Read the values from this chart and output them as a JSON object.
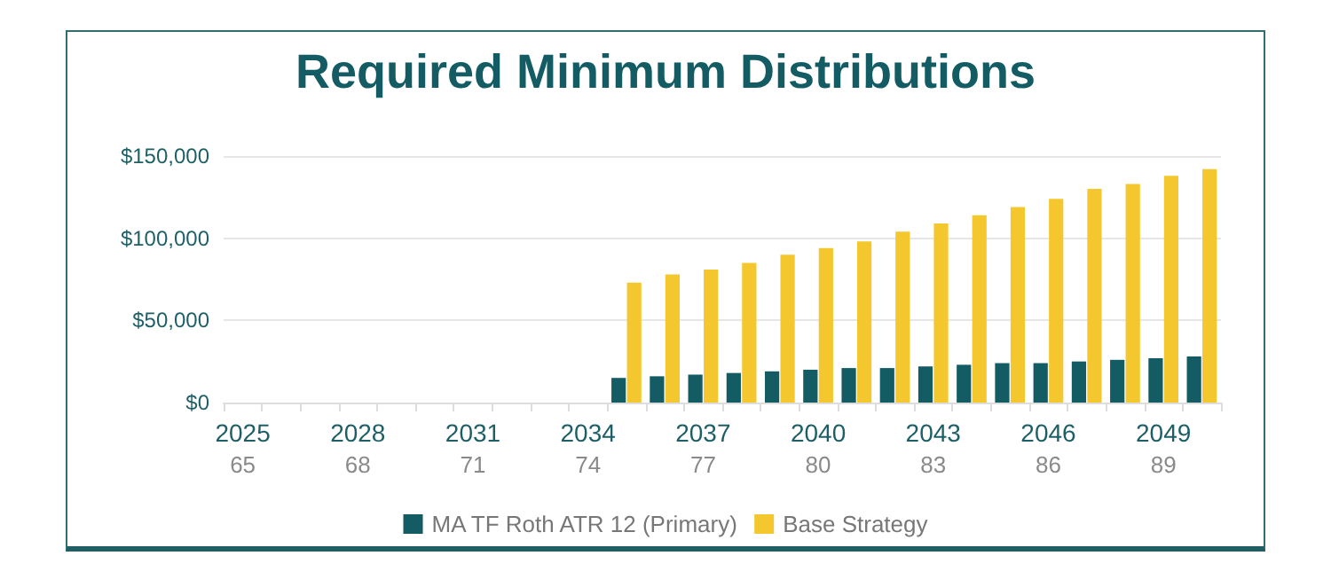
{
  "chart_data": {
    "type": "bar",
    "title": "Required Minimum Distributions",
    "categories": [
      "2025\n65",
      null,
      null,
      "2028\n68",
      null,
      null,
      "2031\n71",
      null,
      null,
      "2034\n74",
      null,
      null,
      "2037\n77",
      null,
      null,
      "2040\n80",
      null,
      null,
      "2043\n83",
      null,
      null,
      "2046\n86",
      null,
      null,
      "2049\n89",
      null
    ],
    "series": [
      {
        "name": "MA TF Roth ATR 12 (Primary)",
        "color": "#145c64",
        "values": [
          null,
          null,
          null,
          null,
          null,
          null,
          null,
          null,
          null,
          null,
          15000,
          16000,
          17000,
          18000,
          19000,
          20000,
          21000,
          21000,
          22000,
          23000,
          24000,
          24000,
          25000,
          26000,
          27000,
          28000
        ]
      },
      {
        "name": "Base Strategy",
        "color": "#f5c72f",
        "values": [
          null,
          null,
          null,
          null,
          null,
          null,
          null,
          null,
          null,
          null,
          73000,
          78000,
          81000,
          85000,
          90000,
          94000,
          98000,
          104000,
          109000,
          114000,
          119000,
          124000,
          130000,
          133000,
          138000,
          142000
        ]
      }
    ],
    "ylim": [
      0,
      150000
    ],
    "yticks": [
      {
        "value": 0,
        "label": "$0"
      },
      {
        "value": 50000,
        "label": "$50,000"
      },
      {
        "value": 100000,
        "label": "$100,000"
      },
      {
        "value": 150000,
        "label": "$150,000"
      }
    ],
    "grid": "y",
    "legend": "bottom"
  }
}
